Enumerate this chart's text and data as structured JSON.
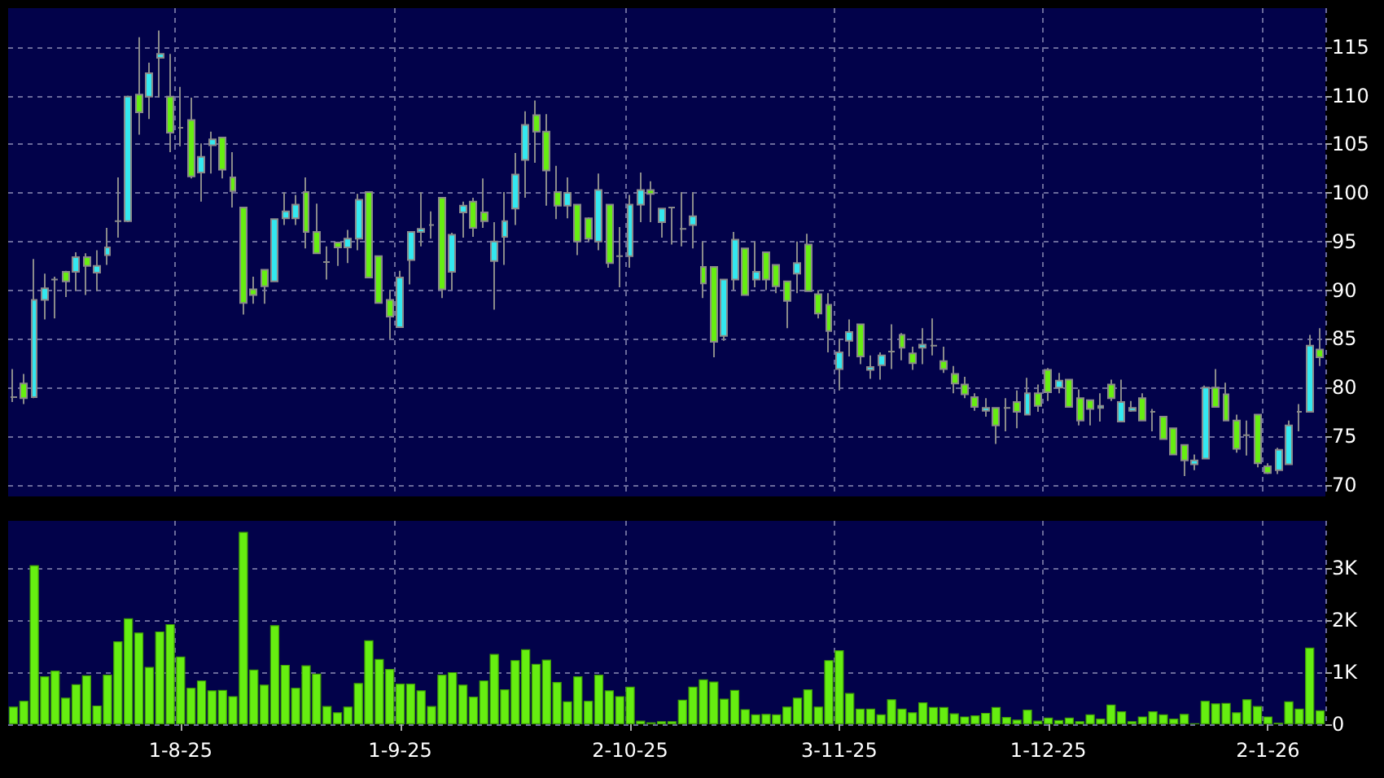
{
  "chart_data": [
    {
      "type": "candlestick",
      "categories": [
        null,
        null,
        null,
        null,
        null,
        null,
        null,
        null,
        null,
        null,
        null,
        null,
        null,
        null,
        null,
        null,
        null,
        null,
        null,
        null,
        null,
        null,
        null,
        null,
        null,
        null,
        null,
        null,
        null,
        null,
        null,
        null,
        null,
        null,
        null,
        null,
        null,
        null,
        null,
        null,
        null,
        null,
        null,
        null,
        null,
        null,
        null,
        null,
        null,
        null,
        null,
        null,
        null,
        null,
        null,
        null,
        null,
        null,
        null,
        null,
        null,
        null,
        null,
        null,
        null,
        null,
        null,
        null,
        null,
        null,
        null,
        null,
        null,
        null,
        null,
        null,
        null,
        null,
        null,
        null,
        null,
        null,
        null,
        null,
        null,
        null,
        null,
        null,
        null,
        null,
        null,
        null,
        null,
        null,
        null,
        null,
        null,
        null,
        null,
        null,
        null,
        null,
        null,
        null,
        null,
        null,
        null,
        null,
        null,
        null,
        null,
        null,
        null,
        null,
        null,
        null,
        null,
        null,
        null,
        null,
        null,
        null,
        null,
        null,
        null,
        null
      ],
      "ohlc": [
        [
          79.0,
          81.9,
          78.5,
          79.0
        ],
        [
          80.4,
          81.4,
          78.3,
          78.9
        ],
        [
          79.0,
          93.2,
          78.9,
          89.0
        ],
        [
          89.0,
          91.7,
          87.0,
          90.2
        ],
        [
          91.1,
          91.4,
          87.1,
          91.1
        ],
        [
          91.9,
          92.0,
          89.3,
          90.9
        ],
        [
          91.9,
          93.9,
          89.9,
          93.4
        ],
        [
          93.4,
          93.8,
          89.5,
          92.5
        ],
        [
          91.8,
          94.1,
          89.9,
          92.5
        ],
        [
          93.6,
          96.4,
          92.6,
          94.4
        ],
        [
          97.1,
          101.6,
          95.4,
          97.1
        ],
        [
          97.1,
          110.0,
          97.0,
          109.9
        ],
        [
          110.1,
          116.0,
          106.0,
          108.3
        ],
        [
          109.9,
          113.4,
          107.6,
          112.3
        ],
        [
          113.9,
          116.7,
          109.8,
          114.3
        ],
        [
          109.9,
          114.3,
          104.2,
          106.2
        ],
        [
          106.7,
          110.9,
          104.8,
          106.7
        ],
        [
          107.5,
          109.8,
          101.5,
          101.7
        ],
        [
          102.1,
          105.1,
          99.1,
          103.7
        ],
        [
          104.9,
          106.3,
          102.0,
          105.5
        ],
        [
          105.7,
          105.7,
          101.5,
          102.4
        ],
        [
          101.6,
          104.2,
          98.5,
          100.2
        ],
        [
          98.5,
          98.5,
          87.5,
          88.7
        ],
        [
          90.1,
          91.4,
          88.6,
          89.5
        ],
        [
          92.1,
          92.1,
          88.6,
          90.4
        ],
        [
          90.9,
          97.3,
          90.9,
          97.3
        ],
        [
          97.4,
          100.1,
          96.7,
          98.1
        ],
        [
          97.4,
          99.8,
          96.7,
          98.8
        ],
        [
          100.1,
          101.6,
          94.3,
          96.0
        ],
        [
          96.0,
          98.9,
          93.8,
          93.8
        ],
        [
          92.9,
          94.5,
          91.1,
          92.9
        ],
        [
          94.9,
          94.9,
          92.5,
          94.4
        ],
        [
          94.4,
          96.2,
          92.8,
          95.3
        ],
        [
          95.3,
          99.9,
          94.1,
          99.3
        ],
        [
          100.1,
          100.1,
          91.3,
          91.3
        ],
        [
          93.5,
          93.5,
          88.7,
          88.7
        ],
        [
          89.0,
          90.0,
          85.0,
          87.3
        ],
        [
          86.2,
          92.0,
          86.2,
          91.3
        ],
        [
          93.1,
          96.0,
          90.6,
          96.0
        ],
        [
          96.0,
          100.1,
          94.5,
          96.3
        ],
        [
          96.7,
          98.1,
          95.3,
          96.7
        ],
        [
          99.5,
          99.5,
          89.2,
          90.1
        ],
        [
          91.9,
          95.9,
          90.0,
          95.7
        ],
        [
          98.0,
          99.1,
          95.4,
          98.7
        ],
        [
          99.1,
          99.5,
          95.5,
          96.4
        ],
        [
          98.0,
          101.5,
          96.4,
          97.1
        ],
        [
          93.0,
          97.0,
          88.0,
          95.0
        ],
        [
          95.5,
          100.1,
          92.6,
          97.1
        ],
        [
          98.4,
          104.1,
          96.7,
          101.9
        ],
        [
          103.4,
          108.4,
          99.5,
          107.0
        ],
        [
          108.0,
          109.5,
          103.1,
          106.3
        ],
        [
          106.3,
          108.1,
          98.7,
          102.3
        ],
        [
          100.1,
          102.8,
          97.3,
          98.7
        ],
        [
          98.7,
          101.6,
          97.4,
          100.0
        ],
        [
          98.8,
          98.8,
          93.6,
          95.0
        ],
        [
          97.4,
          97.5,
          95.0,
          95.3
        ],
        [
          95.0,
          102.0,
          94.1,
          100.3
        ],
        [
          98.8,
          98.8,
          92.3,
          92.8
        ],
        [
          93.5,
          96.5,
          90.3,
          93.5
        ],
        [
          93.5,
          99.8,
          92.3,
          98.8
        ],
        [
          98.8,
          102.1,
          97.0,
          100.3
        ],
        [
          100.3,
          101.2,
          97.0,
          99.9
        ],
        [
          97.0,
          98.4,
          95.4,
          98.4
        ],
        [
          98.5,
          98.5,
          94.7,
          98.5
        ],
        [
          96.3,
          100.1,
          94.5,
          96.3
        ],
        [
          96.7,
          100.1,
          94.3,
          97.6
        ],
        [
          92.4,
          95.0,
          89.2,
          90.7
        ],
        [
          92.4,
          92.4,
          83.1,
          84.7
        ],
        [
          85.3,
          91.1,
          84.8,
          91.1
        ],
        [
          91.1,
          96.0,
          90.0,
          95.2
        ],
        [
          94.3,
          94.3,
          89.5,
          89.5
        ],
        [
          91.1,
          95.0,
          90.3,
          91.9
        ],
        [
          93.9,
          93.9,
          90.0,
          91.1
        ],
        [
          92.6,
          92.6,
          89.7,
          90.4
        ],
        [
          90.9,
          90.9,
          86.1,
          88.9
        ],
        [
          91.7,
          95.0,
          89.7,
          92.8
        ],
        [
          94.7,
          95.8,
          89.9,
          89.9
        ],
        [
          89.6,
          90.0,
          87.1,
          87.6
        ],
        [
          88.5,
          89.7,
          83.6,
          85.8
        ],
        [
          81.9,
          85.0,
          79.7,
          83.6
        ],
        [
          84.8,
          87.0,
          83.2,
          85.7
        ],
        [
          86.5,
          86.5,
          82.4,
          83.2
        ],
        [
          81.8,
          83.3,
          80.9,
          82.1
        ],
        [
          82.3,
          83.6,
          80.8,
          83.3
        ],
        [
          83.7,
          86.5,
          81.9,
          83.7
        ],
        [
          85.4,
          85.6,
          82.8,
          84.1
        ],
        [
          83.5,
          84.2,
          81.8,
          82.5
        ],
        [
          84.1,
          86.1,
          82.4,
          84.4
        ],
        [
          84.3,
          87.1,
          83.3,
          84.3
        ],
        [
          82.7,
          84.2,
          81.5,
          81.9
        ],
        [
          81.4,
          82.2,
          79.4,
          80.4
        ],
        [
          80.3,
          81.1,
          78.9,
          79.3
        ],
        [
          79.0,
          79.4,
          77.6,
          78.0
        ],
        [
          77.6,
          78.9,
          77.0,
          77.9
        ],
        [
          77.9,
          77.9,
          74.2,
          76.1
        ],
        [
          77.9,
          78.9,
          75.5,
          77.9
        ],
        [
          78.5,
          79.7,
          75.8,
          77.5
        ],
        [
          77.2,
          81.0,
          77.2,
          79.4
        ],
        [
          79.4,
          80.3,
          77.5,
          78.1
        ],
        [
          81.8,
          82.0,
          78.6,
          79.5
        ],
        [
          80.0,
          81.5,
          79.4,
          80.7
        ],
        [
          80.8,
          80.8,
          78.0,
          78.0
        ],
        [
          78.9,
          79.8,
          76.1,
          76.6
        ],
        [
          78.7,
          78.7,
          76.1,
          77.8
        ],
        [
          77.9,
          79.4,
          76.5,
          78.1
        ],
        [
          80.3,
          80.8,
          78.6,
          78.9
        ],
        [
          76.5,
          80.8,
          76.5,
          78.5
        ],
        [
          77.6,
          78.6,
          77.5,
          77.9
        ],
        [
          78.9,
          79.4,
          76.6,
          76.6
        ],
        [
          77.5,
          77.8,
          75.5,
          77.5
        ],
        [
          77.0,
          77.0,
          74.7,
          74.7
        ],
        [
          75.8,
          75.8,
          73.1,
          73.1
        ],
        [
          74.1,
          74.1,
          70.9,
          72.5
        ],
        [
          72.1,
          73.1,
          71.5,
          72.5
        ],
        [
          72.7,
          80.2,
          72.7,
          80.0
        ],
        [
          80.0,
          81.9,
          78.0,
          78.0
        ],
        [
          79.3,
          80.5,
          76.6,
          76.6
        ],
        [
          76.6,
          77.2,
          73.3,
          73.7
        ],
        [
          75.1,
          76.6,
          73.0,
          75.1
        ],
        [
          77.2,
          77.2,
          71.8,
          72.2
        ],
        [
          71.9,
          72.2,
          71.1,
          71.2
        ],
        [
          71.5,
          73.8,
          71.1,
          73.6
        ],
        [
          72.1,
          76.6,
          72.1,
          76.1
        ],
        [
          77.5,
          78.3,
          75.5,
          77.5
        ],
        [
          77.5,
          85.4,
          77.5,
          84.3
        ],
        [
          83.9,
          86.1,
          82.2,
          83.1
        ]
      ],
      "colors": [
        "#999999",
        "#66ee11",
        "#33e8f0",
        "#33e8f0",
        "#999999",
        "#66ee11",
        "#33e8f0",
        "#66ee11",
        "#33e8f0",
        "#33e8f0",
        "#999999",
        "#33e8f0",
        "#66ee11",
        "#33e8f0",
        "#33e8f0",
        "#66ee11",
        "#999999",
        "#66ee11",
        "#33e8f0",
        "#33e8f0",
        "#66ee11",
        "#66ee11",
        "#66ee11",
        "#66ee11",
        "#66ee11",
        "#33e8f0",
        "#33e8f0",
        "#33e8f0",
        "#66ee11",
        "#66ee11",
        "#999999",
        "#66ee11",
        "#33e8f0",
        "#33e8f0",
        "#66ee11",
        "#66ee11",
        "#66ee11",
        "#33e8f0",
        "#33e8f0",
        "#33e8f0",
        "#999999",
        "#66ee11",
        "#33e8f0",
        "#33e8f0",
        "#66ee11",
        "#66ee11",
        "#33e8f0",
        "#33e8f0",
        "#33e8f0",
        "#33e8f0",
        "#66ee11",
        "#66ee11",
        "#66ee11",
        "#33e8f0",
        "#66ee11",
        "#66ee11",
        "#33e8f0",
        "#66ee11",
        "#999999",
        "#33e8f0",
        "#33e8f0",
        "#66ee11",
        "#33e8f0",
        "#999999",
        "#999999",
        "#33e8f0",
        "#66ee11",
        "#66ee11",
        "#33e8f0",
        "#33e8f0",
        "#66ee11",
        "#33e8f0",
        "#66ee11",
        "#66ee11",
        "#66ee11",
        "#33e8f0",
        "#66ee11",
        "#66ee11",
        "#66ee11",
        "#33e8f0",
        "#33e8f0",
        "#66ee11",
        "#33e8f0",
        "#33e8f0",
        "#999999",
        "#66ee11",
        "#66ee11",
        "#33e8f0",
        "#999999",
        "#66ee11",
        "#66ee11",
        "#66ee11",
        "#66ee11",
        "#33e8f0",
        "#66ee11",
        "#999999",
        "#66ee11",
        "#33e8f0",
        "#66ee11",
        "#66ee11",
        "#33e8f0",
        "#66ee11",
        "#66ee11",
        "#66ee11",
        "#33e8f0",
        "#66ee11",
        "#33e8f0",
        "#33e8f0",
        "#66ee11",
        "#999999",
        "#66ee11",
        "#66ee11",
        "#66ee11",
        "#33e8f0",
        "#33e8f0",
        "#66ee11",
        "#66ee11",
        "#66ee11",
        "#999999",
        "#66ee11",
        "#66ee11",
        "#33e8f0",
        "#33e8f0",
        "#999999",
        "#33e8f0",
        "#66ee11"
      ],
      "ylim": [
        68.8,
        119
      ],
      "yticks": [
        70,
        75,
        80,
        85,
        90,
        95,
        100,
        105,
        110,
        115
      ],
      "grid": true,
      "tick_labels": "y"
    },
    {
      "type": "bar",
      "categories": [
        null,
        null,
        null,
        null,
        null,
        null,
        null,
        null,
        null,
        null,
        null,
        null,
        null,
        null,
        null,
        null,
        "1-8-25",
        null,
        null,
        null,
        null,
        null,
        null,
        null,
        null,
        null,
        null,
        null,
        null,
        null,
        null,
        null,
        null,
        null,
        null,
        null,
        null,
        "1-9-25",
        null,
        null,
        null,
        null,
        null,
        null,
        null,
        null,
        null,
        null,
        null,
        null,
        null,
        null,
        null,
        null,
        null,
        null,
        null,
        null,
        null,
        "2-10-25",
        null,
        null,
        null,
        null,
        null,
        null,
        null,
        null,
        null,
        null,
        null,
        null,
        null,
        null,
        null,
        null,
        null,
        null,
        null,
        "3-11-25",
        null,
        null,
        null,
        null,
        null,
        null,
        null,
        null,
        null,
        null,
        null,
        null,
        null,
        null,
        null,
        null,
        null,
        null,
        null,
        "1-12-25",
        null,
        null,
        null,
        null,
        null,
        null,
        null,
        null,
        null,
        null,
        null,
        null,
        null,
        null,
        null,
        null,
        null,
        null,
        null,
        null,
        "2-1-26",
        null,
        null,
        null,
        null,
        null
      ],
      "values": [
        340,
        450,
        3050,
        920,
        1030,
        510,
        770,
        940,
        360,
        950,
        1590,
        2030,
        1760,
        1100,
        1780,
        1920,
        1300,
        700,
        840,
        650,
        660,
        540,
        3690,
        1050,
        760,
        1900,
        1140,
        700,
        1130,
        970,
        350,
        230,
        340,
        790,
        1610,
        1250,
        1060,
        780,
        780,
        650,
        350,
        950,
        1000,
        760,
        530,
        840,
        1350,
        670,
        1230,
        1440,
        1160,
        1240,
        810,
        440,
        920,
        450,
        950,
        650,
        540,
        720,
        70,
        40,
        60,
        60,
        470,
        720,
        860,
        820,
        490,
        660,
        290,
        190,
        200,
        190,
        340,
        510,
        670,
        340,
        1230,
        1420,
        600,
        300,
        300,
        190,
        480,
        300,
        230,
        420,
        330,
        330,
        210,
        150,
        170,
        220,
        330,
        140,
        90,
        280,
        70,
        130,
        80,
        130,
        60,
        190,
        110,
        380,
        250,
        60,
        150,
        250,
        190,
        110,
        200,
        20,
        450,
        400,
        410,
        230,
        480,
        350,
        150,
        30,
        440,
        300,
        1470,
        270
      ],
      "color": "#66ee11",
      "ylim": [
        0,
        3900
      ],
      "yticks": [
        0,
        {
          "value": 1000,
          "label": "1K"
        },
        {
          "value": 2000,
          "label": "2K"
        },
        {
          "value": 3000,
          "label": "3K"
        }
      ],
      "grid": true
    }
  ]
}
